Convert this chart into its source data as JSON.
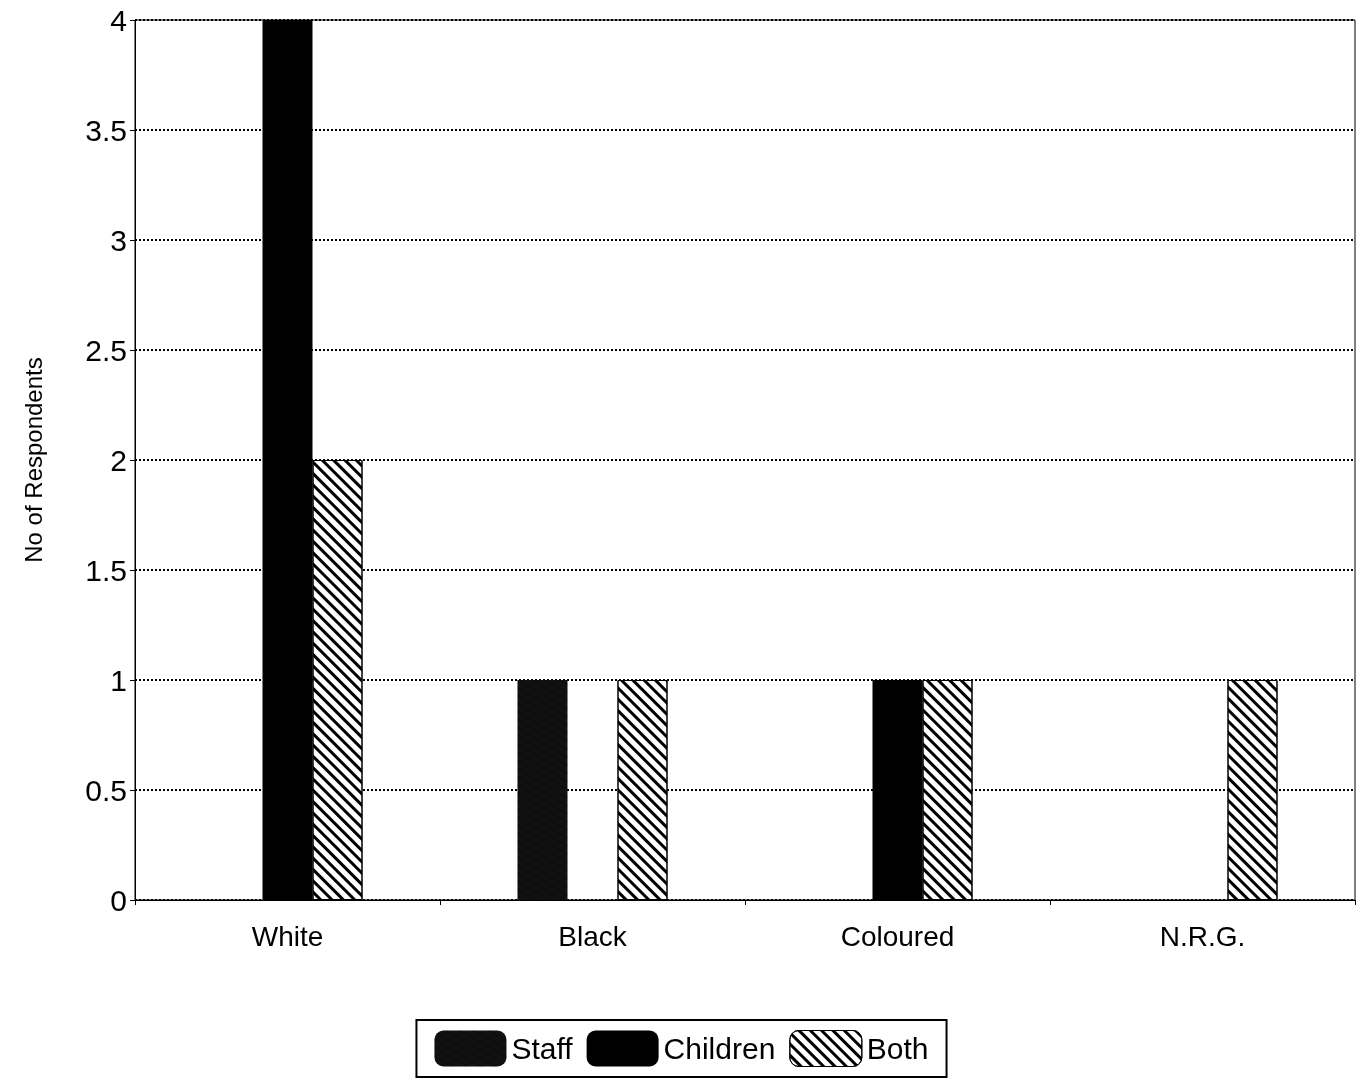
{
  "chart_data": {
    "type": "bar",
    "ylabel": "No of Respondents",
    "categories": [
      "White",
      "Black",
      "Coloured",
      "N.R.G."
    ],
    "series": [
      {
        "name": "Staff",
        "color": "#111111",
        "values": [
          0,
          1,
          0,
          0
        ]
      },
      {
        "name": "Children",
        "color": "#000000",
        "values": [
          4,
          0,
          1,
          0
        ]
      },
      {
        "name": "Both",
        "color": "#ffffff",
        "values": [
          2,
          1,
          1,
          1
        ]
      }
    ],
    "ylim": [
      0,
      4
    ],
    "yticks": [
      0,
      0.5,
      1,
      1.5,
      2,
      2.5,
      3,
      3.5,
      4
    ],
    "grid": "y",
    "legend": "bottom"
  }
}
